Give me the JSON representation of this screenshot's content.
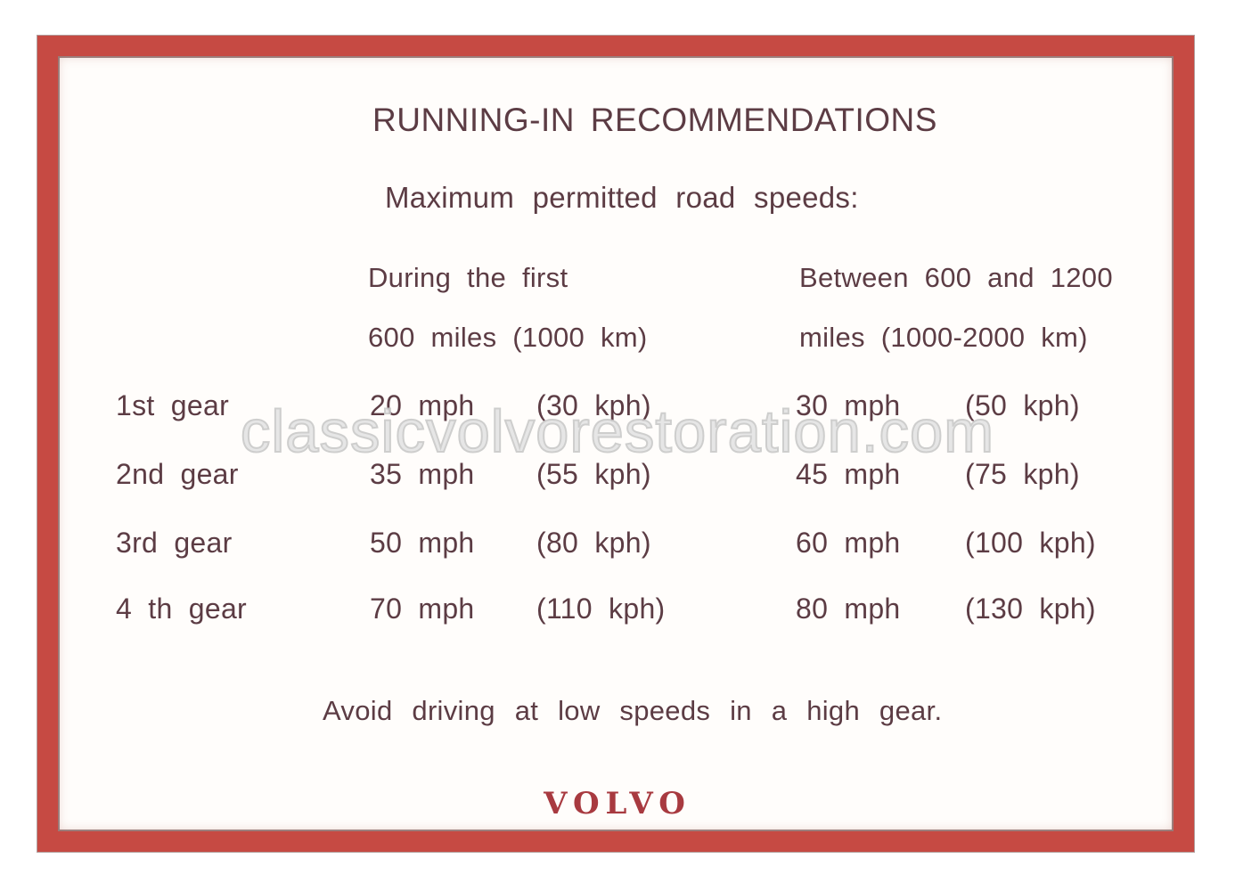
{
  "watermark_text": "classicvolvorestoration.com",
  "card": {
    "title": "RUNNING-IN RECOMMENDATIONS",
    "subtitle": "Maximum permitted road speeds:",
    "columns": [
      {
        "line1": "During the first",
        "line2": "600 miles (1000 km)"
      },
      {
        "line1": "Between 600 and 1200",
        "line2": "miles (1000-2000 km)"
      }
    ],
    "rows": [
      {
        "gear": "1st gear",
        "c1_mph": "20 mph",
        "c1_kph": "(30 kph)",
        "c2_mph": "30 mph",
        "c2_kph": "(50 kph)"
      },
      {
        "gear": "2nd gear",
        "c1_mph": "35 mph",
        "c1_kph": "(55 kph)",
        "c2_mph": "45 mph",
        "c2_kph": "(75 kph)"
      },
      {
        "gear": "3rd gear",
        "c1_mph": "50 mph",
        "c1_kph": "(80 kph)",
        "c2_mph": "60 mph",
        "c2_kph": "(100 kph)"
      },
      {
        "gear": "4 th gear",
        "c1_mph": "70 mph",
        "c1_kph": "(110 kph)",
        "c2_mph": "80 mph",
        "c2_kph": "(130 kph)"
      }
    ],
    "footnote": "Avoid driving at low speeds in a high gear.",
    "logo": "VOLVO"
  },
  "colors": {
    "frame_red": "#c64a43",
    "hairline_dark": "#542826",
    "text_ink": "#5c3c44",
    "logo_red": "#a83a40",
    "watermark_gray": "#c9c9c9",
    "background": "#ffffff"
  }
}
